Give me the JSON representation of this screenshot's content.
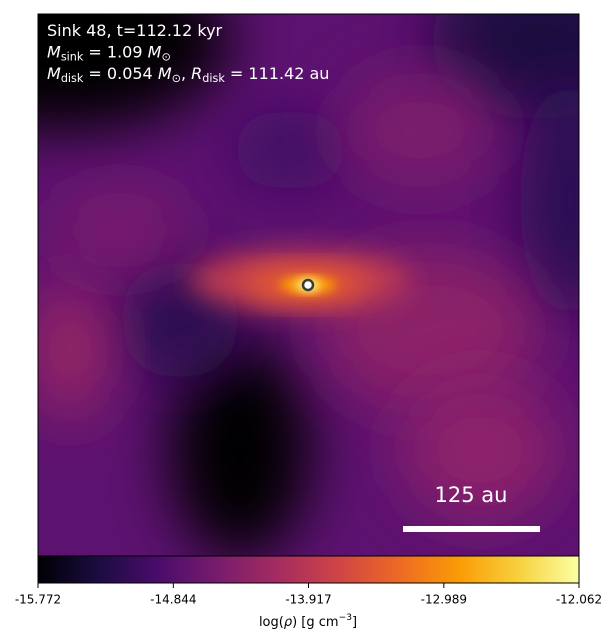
{
  "chart_data": {
    "type": "image",
    "annotations": [
      [
        {
          "text": "Sink 48, t=112.12 kyr"
        }
      ],
      [
        {
          "italic": "M"
        },
        {
          "sub": "sink"
        },
        {
          "text": " = 1.09 "
        },
        {
          "italic": "M"
        },
        {
          "sub": "⊙"
        }
      ],
      [
        {
          "italic": "M"
        },
        {
          "sub": "disk"
        },
        {
          "text": " = 0.054 "
        },
        {
          "italic": "M"
        },
        {
          "sub": "⊙"
        },
        {
          "text": ", "
        },
        {
          "italic": "R"
        },
        {
          "sub": "disk"
        },
        {
          "text": " = 111.42 au"
        }
      ]
    ],
    "scalebar_label": "125 au",
    "colorbar": {
      "label": [
        {
          "text": "log("
        },
        {
          "italic": "ρ"
        },
        {
          "text": ") [g cm"
        },
        {
          "sup": "−3"
        },
        {
          "text": "]"
        }
      ],
      "clim": [
        -15.772,
        -12.062
      ],
      "ticks": [
        -15.772,
        -14.844,
        -13.917,
        -12.989,
        -12.062
      ],
      "colormap": [
        "#000004",
        "#1b0c41",
        "#4a0c6b",
        "#781c6d",
        "#a52c60",
        "#cf4446",
        "#ed6925",
        "#fb9b06",
        "#f7d13d",
        "#fcffa4"
      ]
    }
  }
}
